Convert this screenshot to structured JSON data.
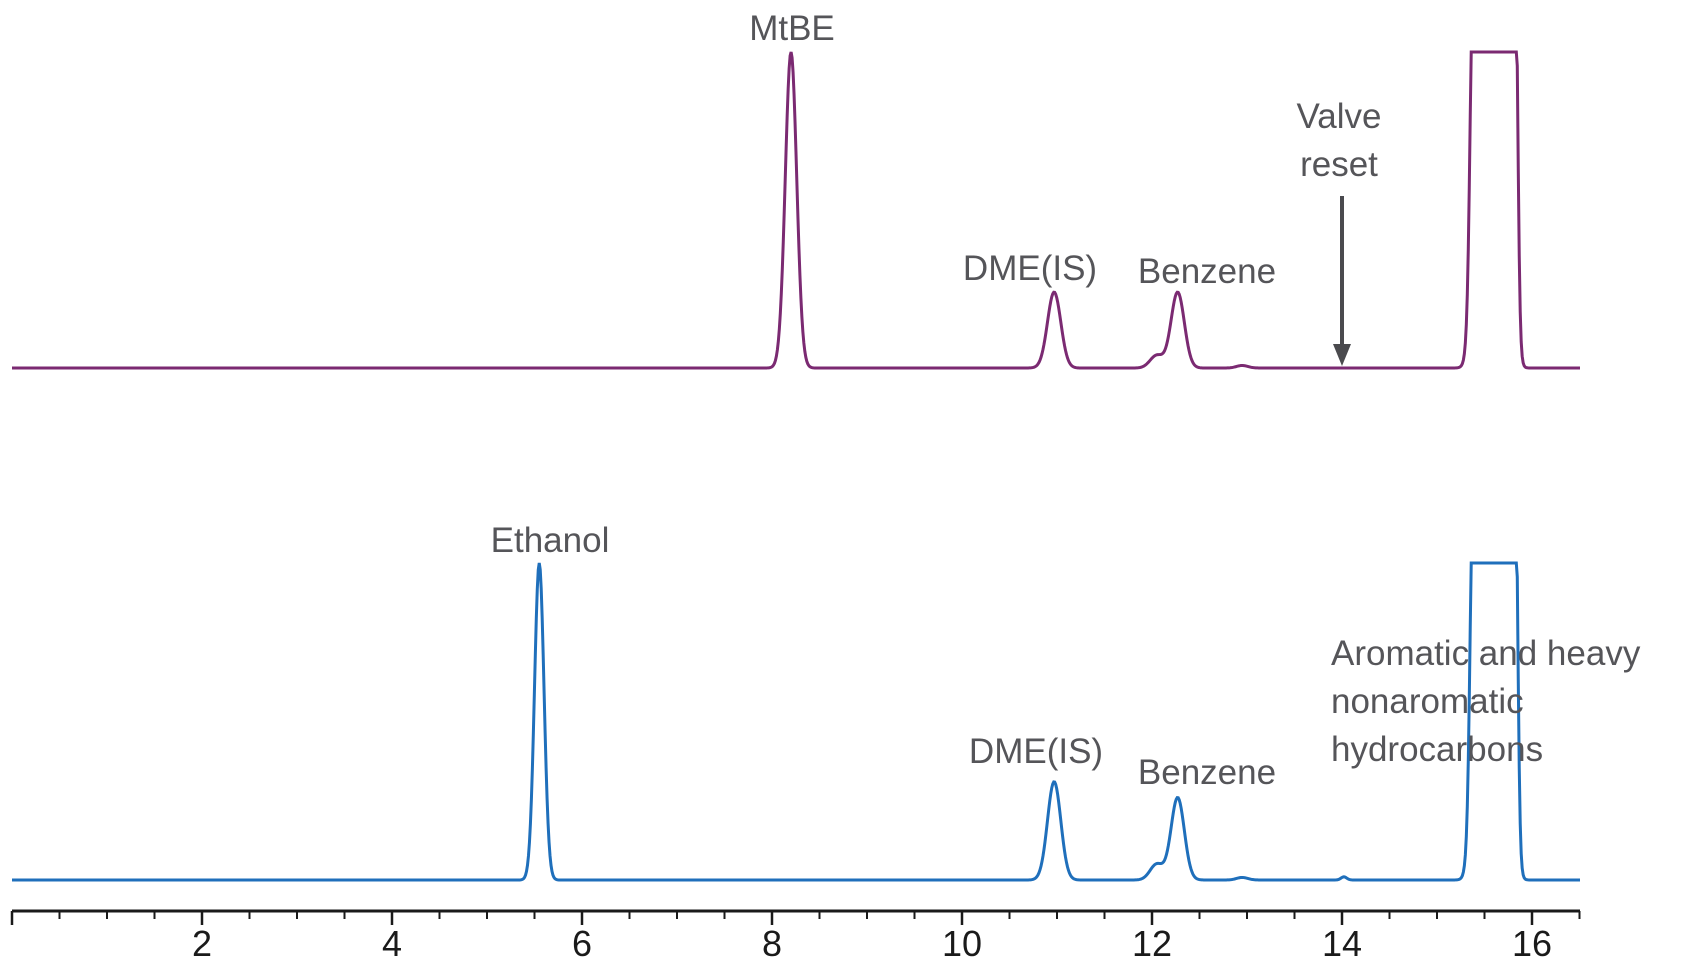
{
  "chart_data": {
    "type": "line",
    "x_axis": {
      "min": 0,
      "max": 16.6,
      "major_ticks": [
        2,
        4,
        6,
        8,
        10,
        12,
        14,
        16
      ],
      "tick_labels": [
        "2",
        "4",
        "6",
        "8",
        "10",
        "12",
        "14",
        "16"
      ]
    },
    "series": [
      {
        "color": "#7b2a72",
        "baseline": 0,
        "max_shown": 1.0,
        "peaks": [
          {
            "x": 8.2,
            "height": 1.0,
            "width": 0.06
          },
          {
            "x": 10.97,
            "height": 0.24,
            "width": 0.07
          },
          {
            "x": 12.05,
            "height": 0.04,
            "width": 0.07
          },
          {
            "x": 12.27,
            "height": 0.24,
            "width": 0.07
          },
          {
            "x": 12.95,
            "height": 0.008,
            "width": 0.06
          }
        ],
        "flat_top": {
          "start": 15.35,
          "end": 15.85,
          "height": 1.0
        },
        "labels": [
          {
            "text": "MtBE"
          },
          {
            "text": "DME(IS)"
          },
          {
            "text": "Benzene"
          },
          {
            "text": "Valve"
          },
          {
            "text": "reset"
          }
        ],
        "arrow_x": 14.0
      },
      {
        "color": "#1f6fbb",
        "baseline": 0,
        "max_shown": 1.0,
        "peaks": [
          {
            "x": 5.55,
            "height": 1.0,
            "width": 0.05
          },
          {
            "x": 10.97,
            "height": 0.31,
            "width": 0.07
          },
          {
            "x": 12.05,
            "height": 0.05,
            "width": 0.07
          },
          {
            "x": 12.27,
            "height": 0.26,
            "width": 0.07
          },
          {
            "x": 12.95,
            "height": 0.008,
            "width": 0.06
          },
          {
            "x": 14.02,
            "height": 0.01,
            "width": 0.03
          }
        ],
        "flat_top": {
          "start": 15.35,
          "end": 15.85,
          "height": 1.0
        },
        "labels": [
          {
            "text": "Ethanol"
          },
          {
            "text": "DME(IS)"
          },
          {
            "text": "Benzene"
          },
          {
            "text": "Aromatic and heavy"
          },
          {
            "text": "nonaromatic"
          },
          {
            "text": "hydrocarbons"
          }
        ]
      }
    ]
  }
}
